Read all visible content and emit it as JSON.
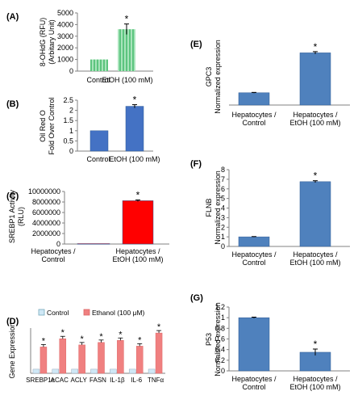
{
  "chart_data": [
    {
      "panel": "(A)",
      "type": "bar",
      "categories": [
        "Control",
        "EtOH (100 mM)"
      ],
      "values": [
        1000,
        3600
      ],
      "errors": [
        0,
        450
      ],
      "significance": [
        "",
        "*"
      ],
      "ylabel": [
        "8-OHdG (RFU)",
        "(Arbitary Unit)"
      ],
      "ylim": [
        0,
        5000
      ],
      "yticks": [
        "0",
        "1000",
        "2000",
        "3000",
        "4000",
        "5000"
      ],
      "bar_color": "#7fd29a",
      "bar_style": "striped"
    },
    {
      "panel": "(B)",
      "type": "bar",
      "categories": [
        "Control",
        "EtOH (100 mM)"
      ],
      "values": [
        1.0,
        2.2
      ],
      "errors": [
        0,
        0.08
      ],
      "significance": [
        "",
        "*"
      ],
      "ylabel": [
        "Oil Red O",
        "Fold Over Control"
      ],
      "ylim": [
        0,
        2.5
      ],
      "yticks": [
        "0",
        "0.5",
        "1",
        "1.5",
        "2",
        "2.5"
      ],
      "bar_color": "#4472c4"
    },
    {
      "panel": "(C)",
      "type": "bar",
      "categories": [
        "Hepatocytes / Control",
        "Hepatocytes / EtOH (100 mM)"
      ],
      "values": [
        80000,
        8250000
      ],
      "errors": [
        0,
        150000
      ],
      "significance": [
        "",
        "*"
      ],
      "ylabel": [
        "SREBP1  Activity",
        "(RLU)"
      ],
      "ylim": [
        0,
        10000000
      ],
      "yticks": [
        "0",
        "2000000",
        "4000000",
        "6000000",
        "8000000",
        "10000000"
      ],
      "bar_color": "#ff0000"
    },
    {
      "panel": "(D)",
      "type": "bar",
      "categories": [
        "SREBP1c",
        "ACAC",
        "ACLY",
        "FASN",
        "IL-1β",
        "IL-6",
        "TNFα"
      ],
      "series": [
        {
          "name": "Control",
          "values": [
            1,
            1,
            1,
            1,
            1,
            1,
            1
          ],
          "color": "#cfe8f6"
        },
        {
          "name": "Ethanol (100 μM)",
          "values": [
            6.4,
            8.4,
            6.9,
            7.5,
            8.0,
            6.6,
            9.8
          ],
          "color": "#f08080"
        }
      ],
      "significance": [
        "*",
        "*",
        "*",
        "*",
        "*",
        "*",
        "*"
      ],
      "ylabel": [
        "Gene Expression"
      ],
      "ylim": [
        0,
        11
      ],
      "yticks": [],
      "legend": "top-left"
    },
    {
      "panel": "(E)",
      "type": "bar",
      "categories": [
        "Hepatocytes / Control",
        "Hepatocytes /EtOH (100 mM)"
      ],
      "values": [
        1.0,
        4.25
      ],
      "errors": [
        0.03,
        0.1
      ],
      "significance": [
        "",
        "*"
      ],
      "ylabel": [
        "GPC3",
        "Normalized expression"
      ],
      "ylim": [
        0,
        5
      ],
      "yticks": [],
      "bar_color": "#4f81bd"
    },
    {
      "panel": "(F)",
      "type": "bar",
      "categories": [
        "Hepatocytes / Control",
        "Hepatocytes /EtOH (100 mM)"
      ],
      "values": [
        1.0,
        6.75
      ],
      "errors": [
        0.03,
        0.1
      ],
      "significance": [
        "",
        "*"
      ],
      "ylabel": [
        "FLNB",
        "Normalized expression"
      ],
      "ylim": [
        0,
        8
      ],
      "yticks": [
        "0",
        "1",
        "2",
        "3",
        "4",
        "5",
        "6",
        "7",
        "8"
      ],
      "bar_color": "#4f81bd"
    },
    {
      "panel": "(G)",
      "type": "bar",
      "categories": [
        "Hepatocytes / Control",
        "Hepatocytes /EtOH (100 mM)"
      ],
      "values": [
        1.0,
        0.35
      ],
      "errors": [
        0.01,
        0.06
      ],
      "significance": [
        "",
        "*"
      ],
      "ylabel": [
        "P53",
        "Normalized expression"
      ],
      "ylim": [
        0,
        1.2
      ],
      "yticks": [
        "0",
        "0.2",
        "0.4",
        "0.6",
        "0.8",
        "1",
        "1.2"
      ],
      "bar_color": "#4f81bd"
    }
  ]
}
